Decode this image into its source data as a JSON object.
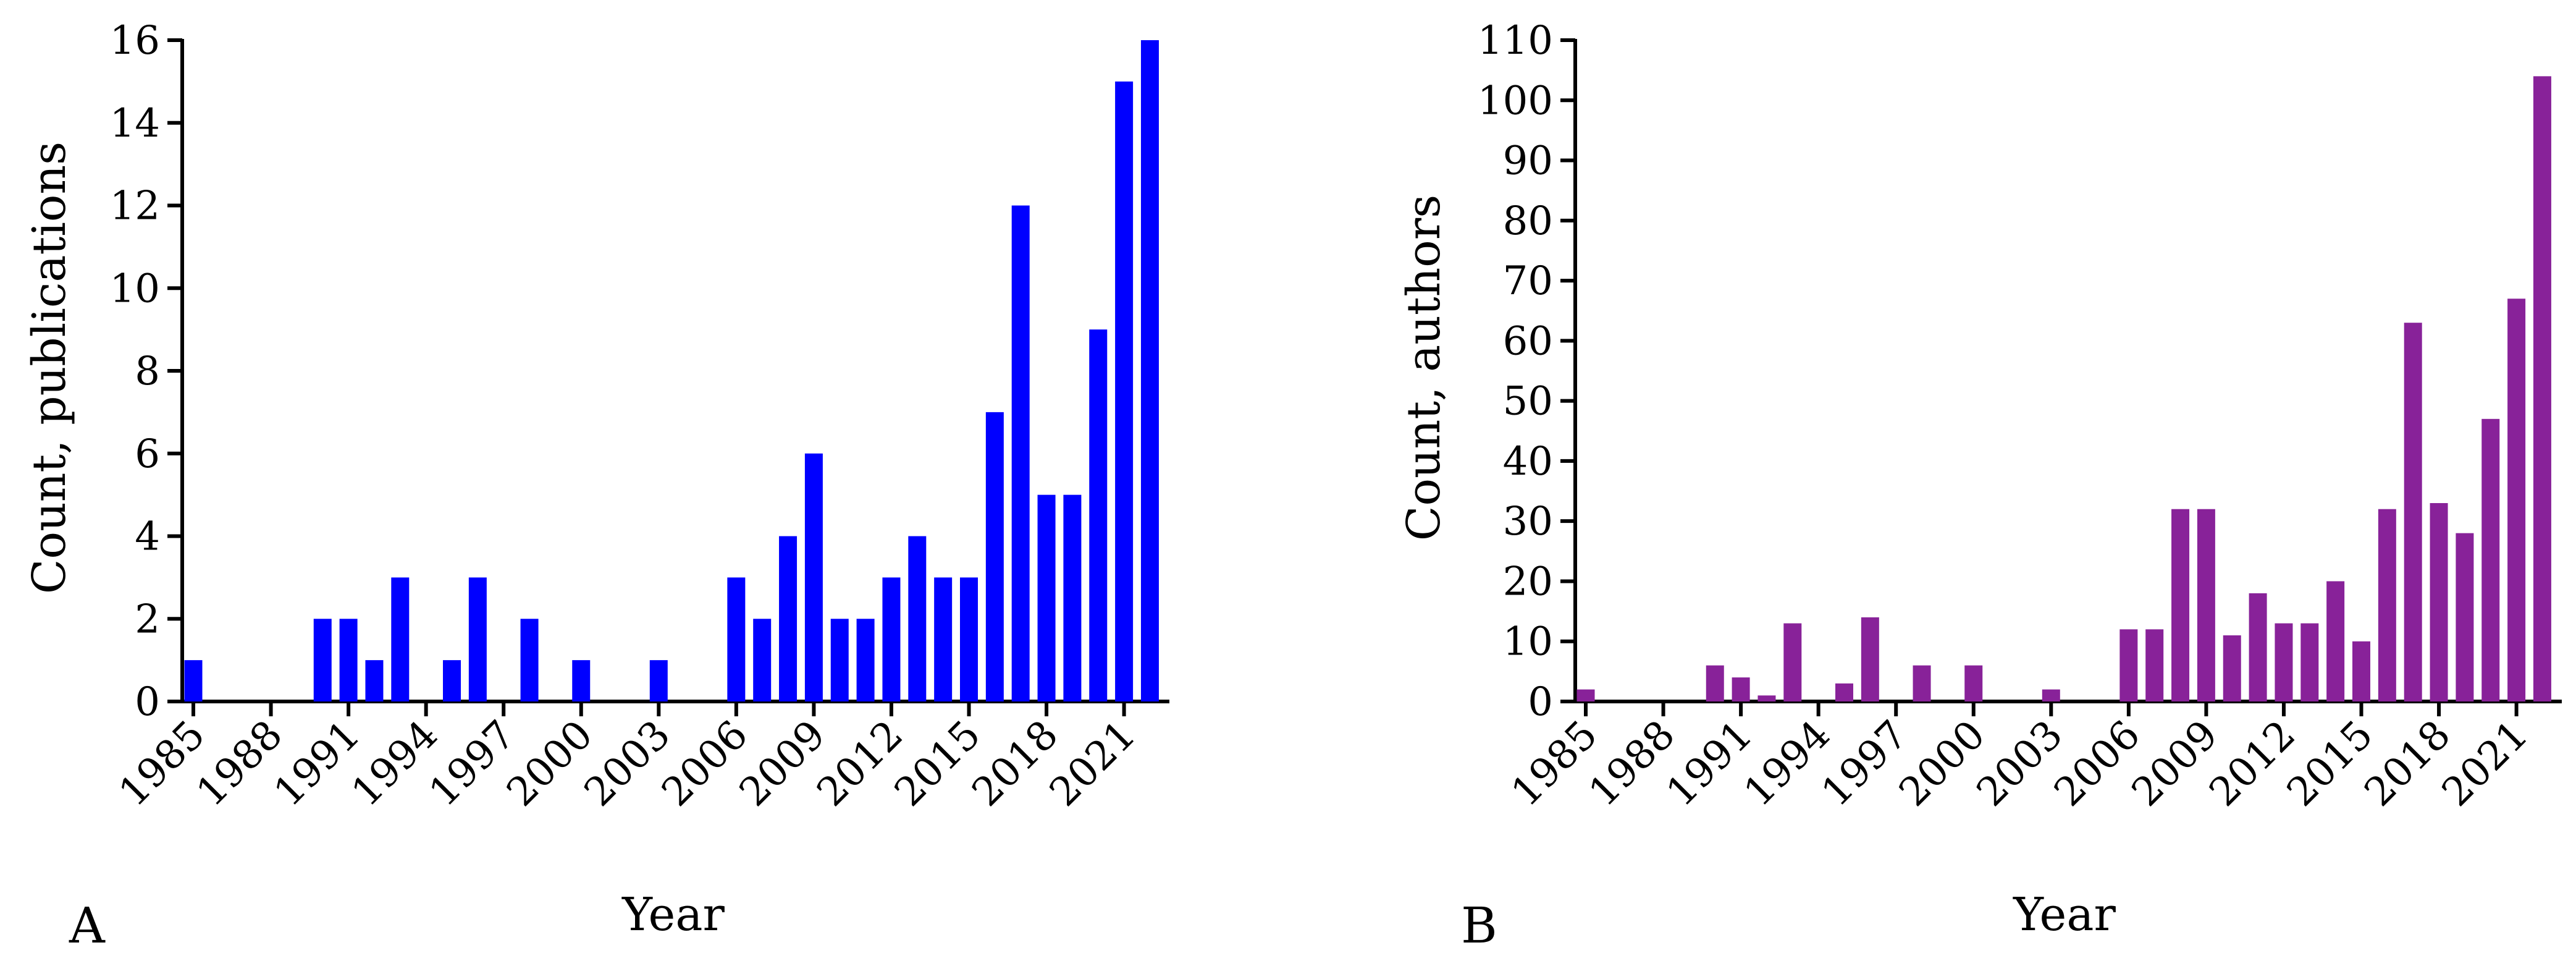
{
  "chart_data": [
    {
      "panel_label": "A",
      "type": "bar",
      "xlabel": "Year",
      "ylabel": "Count, publications",
      "ylim": [
        0,
        16
      ],
      "yticks": [
        0,
        2,
        4,
        6,
        8,
        10,
        12,
        14,
        16
      ],
      "xtick_labels": [
        "1985",
        "1988",
        "1991",
        "1994",
        "1997",
        "2000",
        "2003",
        "2006",
        "2009",
        "2012",
        "2015",
        "2018",
        "2021"
      ],
      "color": "#0000ff",
      "categories": [
        1985,
        1986,
        1987,
        1988,
        1989,
        1990,
        1991,
        1992,
        1993,
        1994,
        1995,
        1996,
        1997,
        1998,
        1999,
        2000,
        2001,
        2002,
        2003,
        2004,
        2005,
        2006,
        2007,
        2008,
        2009,
        2010,
        2011,
        2012,
        2013,
        2014,
        2015,
        2016,
        2017,
        2018,
        2019,
        2020,
        2021,
        2022
      ],
      "values": [
        1,
        0,
        0,
        0,
        0,
        2,
        2,
        1,
        3,
        0,
        1,
        3,
        0,
        2,
        0,
        1,
        0,
        0,
        1,
        0,
        0,
        3,
        2,
        4,
        6,
        2,
        2,
        3,
        4,
        3,
        3,
        7,
        12,
        5,
        5,
        9,
        15,
        16
      ]
    },
    {
      "panel_label": "B",
      "type": "bar",
      "xlabel": "Year",
      "ylabel": "Count, authors",
      "ylim": [
        0,
        110
      ],
      "yticks": [
        0,
        10,
        20,
        30,
        40,
        50,
        60,
        70,
        80,
        90,
        100,
        110
      ],
      "xtick_labels": [
        "1985",
        "1988",
        "1991",
        "1994",
        "1997",
        "2000",
        "2003",
        "2006",
        "2009",
        "2012",
        "2015",
        "2018",
        "2021"
      ],
      "color": "#882299",
      "categories": [
        1985,
        1986,
        1987,
        1988,
        1989,
        1990,
        1991,
        1992,
        1993,
        1994,
        1995,
        1996,
        1997,
        1998,
        1999,
        2000,
        2001,
        2002,
        2003,
        2004,
        2005,
        2006,
        2007,
        2008,
        2009,
        2010,
        2011,
        2012,
        2013,
        2014,
        2015,
        2016,
        2017,
        2018,
        2019,
        2020,
        2021,
        2022
      ],
      "values": [
        2,
        0,
        0,
        0,
        0,
        6,
        4,
        1,
        13,
        0,
        3,
        14,
        0,
        6,
        0,
        6,
        0,
        0,
        2,
        0,
        0,
        12,
        12,
        32,
        32,
        11,
        18,
        13,
        13,
        20,
        10,
        32,
        63,
        33,
        28,
        47,
        67,
        104
      ]
    }
  ]
}
